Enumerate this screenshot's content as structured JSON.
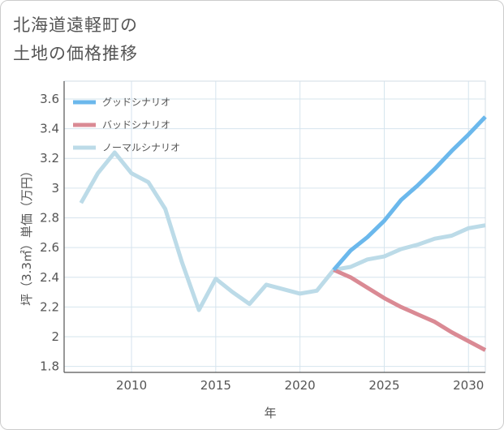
{
  "title": {
    "line1": "北海道遠軽町の",
    "line2": "土地の価格推移"
  },
  "colors": {
    "good": "#6bb8ec",
    "bad": "#da8a94",
    "normal": "#bcdbe8",
    "grid": "#d6e4ee",
    "text": "#555555"
  },
  "chart_data": {
    "type": "line",
    "title": "北海道遠軽町の土地の価格推移",
    "xlabel": "年",
    "ylabel": "坪（3.3㎡）単価（万円）",
    "xlim": [
      2006,
      2031
    ],
    "ylim": [
      1.76,
      3.72
    ],
    "xticks": [
      2010,
      2015,
      2020,
      2025,
      2030
    ],
    "yticks": [
      1.8,
      2,
      2.2,
      2.4,
      2.6,
      2.8,
      3,
      3.2,
      3.4,
      3.6
    ],
    "legend_position": "top-left",
    "series": [
      {
        "name": "グッドシナリオ",
        "color": "#6bb8ec",
        "x": [
          2022,
          2023,
          2024,
          2025,
          2026,
          2027,
          2028,
          2029,
          2030,
          2031
        ],
        "y": [
          2.45,
          2.58,
          2.67,
          2.78,
          2.92,
          3.02,
          3.13,
          3.25,
          3.36,
          3.48
        ]
      },
      {
        "name": "バッドシナリオ",
        "color": "#da8a94",
        "x": [
          2022,
          2023,
          2024,
          2025,
          2026,
          2027,
          2028,
          2029,
          2030,
          2031
        ],
        "y": [
          2.45,
          2.4,
          2.33,
          2.26,
          2.2,
          2.15,
          2.1,
          2.03,
          1.97,
          1.91
        ]
      },
      {
        "name": "ノーマルシナリオ",
        "color": "#bcdbe8",
        "x": [
          2007,
          2008,
          2009,
          2010,
          2011,
          2012,
          2013,
          2014,
          2015,
          2016,
          2017,
          2018,
          2019,
          2020,
          2021,
          2022,
          2023,
          2024,
          2025,
          2026,
          2027,
          2028,
          2029,
          2030,
          2031
        ],
        "y": [
          2.9,
          3.1,
          3.24,
          3.1,
          3.04,
          2.86,
          2.5,
          2.18,
          2.39,
          2.3,
          2.22,
          2.35,
          2.32,
          2.29,
          2.31,
          2.45,
          2.47,
          2.52,
          2.54,
          2.59,
          2.62,
          2.66,
          2.68,
          2.73,
          2.75
        ]
      }
    ]
  }
}
